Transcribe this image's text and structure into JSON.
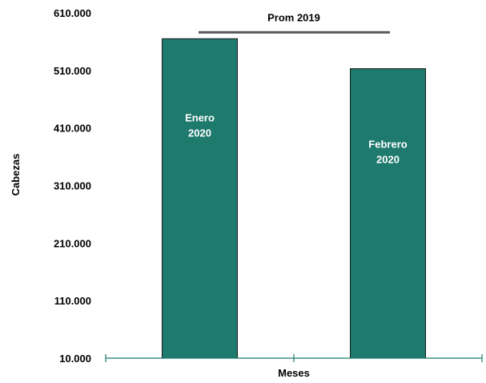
{
  "chart_data": {
    "type": "bar",
    "categories": [
      "Enero 2020",
      "Febrero 2020"
    ],
    "category_label_lines": [
      [
        "Enero",
        "2020"
      ],
      [
        "Febrero",
        "2020"
      ]
    ],
    "values": [
      565000,
      513000
    ],
    "xlabel": "Meses",
    "ylabel": "Cabezas",
    "ylim": [
      10000,
      610000
    ],
    "yticks": [
      10000,
      110000,
      210000,
      310000,
      410000,
      510000,
      610000
    ],
    "ytick_labels": [
      "10.000",
      "110.000",
      "210.000",
      "310.000",
      "410.000",
      "510.000",
      "610.000"
    ],
    "reference_line": {
      "label": "Prom 2019",
      "value": 576000
    },
    "grid": false,
    "legend": "none",
    "colors": {
      "bar": "#1f7a6e",
      "bar_stroke": "#1a1a1a",
      "axis": "#1f7a6e",
      "reference": "#595959"
    }
  }
}
